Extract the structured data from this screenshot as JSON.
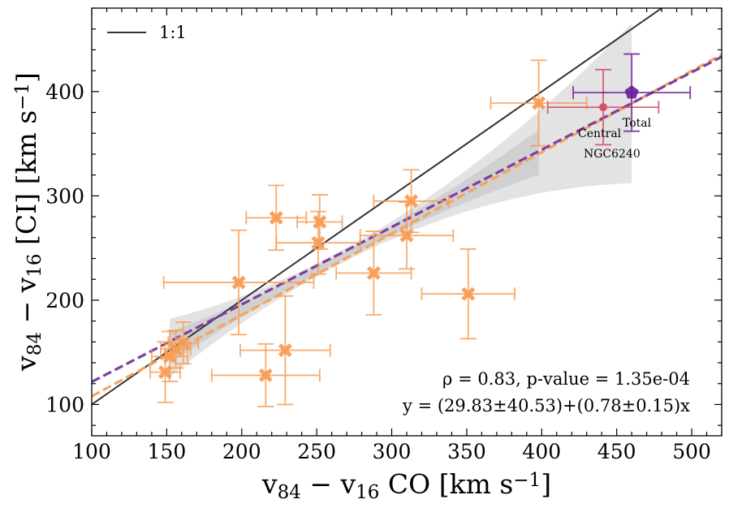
{
  "chart_data": {
    "type": "scatter",
    "xlabel": "v84 − v16 CO [km s−1]",
    "ylabel": "v84 − v16 [CI] [km s−1]",
    "xlabel_parts": {
      "main": "v",
      "sub1": "84",
      "minus": " − v",
      "sub2": "16",
      "species": " CO [km s",
      "sup": "−1",
      "end": "]"
    },
    "ylabel_parts": {
      "main": "v",
      "sub1": "84",
      "minus": " − v",
      "sub2": "16",
      "species": " [CI] [km s",
      "sup": "−1",
      "end": "]"
    },
    "xlim": [
      100,
      520
    ],
    "ylim": [
      70,
      480
    ],
    "xticks": [
      100,
      150,
      200,
      250,
      300,
      350,
      400,
      450,
      500
    ],
    "yticks": [
      100,
      200,
      300,
      400
    ],
    "xtick_labels": [
      "100",
      "150",
      "200",
      "250",
      "300",
      "350",
      "400",
      "450",
      "500"
    ],
    "ytick_labels": [
      "100",
      "200",
      "300",
      "400"
    ],
    "colors": {
      "points": "#f79d55",
      "total": "#6a1b9a",
      "central": "#d9506b",
      "one_to_one": "#333333",
      "fit_orange": "#f5a35f",
      "fit_purple": "#7b3fa0",
      "band_light": "#e3e3e3",
      "band_dark": "#c9c9c9"
    },
    "legend": [
      {
        "label": "1:1"
      }
    ],
    "points": [
      {
        "x": 149,
        "y": 131,
        "xerr": 10,
        "yerr": 29
      },
      {
        "x": 152,
        "y": 146,
        "xerr": 12,
        "yerr": 24
      },
      {
        "x": 156,
        "y": 153,
        "xerr": 10,
        "yerr": 18
      },
      {
        "x": 161,
        "y": 159,
        "xerr": 10,
        "yerr": 20
      },
      {
        "x": 198,
        "y": 217,
        "xerr": 50,
        "yerr": 50
      },
      {
        "x": 216,
        "y": 128,
        "xerr": 36,
        "yerr": 30
      },
      {
        "x": 223,
        "y": 279,
        "xerr": 20,
        "yerr": 31
      },
      {
        "x": 229,
        "y": 152,
        "xerr": 30,
        "yerr": 52
      },
      {
        "x": 251,
        "y": 255,
        "xerr": 28,
        "yerr": 30
      },
      {
        "x": 252,
        "y": 275,
        "xerr": 15,
        "yerr": 26
      },
      {
        "x": 288,
        "y": 226,
        "xerr": 25,
        "yerr": 40
      },
      {
        "x": 310,
        "y": 262,
        "xerr": 31,
        "yerr": 32
      },
      {
        "x": 313,
        "y": 295,
        "xerr": 25,
        "yerr": 30
      },
      {
        "x": 351,
        "y": 206,
        "xerr": 31,
        "yerr": 43
      },
      {
        "x": 398,
        "y": 389,
        "xerr": 32,
        "yerr": 41
      }
    ],
    "total": {
      "x": 460,
      "y": 399,
      "xerr": 39,
      "yerr": 37,
      "label": "Total"
    },
    "central": {
      "x": 441,
      "y": 385,
      "xerr": 37,
      "yerr": 36,
      "label": "Central"
    },
    "ngc_label": "NGC6240",
    "fits": [
      {
        "name": "orange",
        "intercept": 29.83,
        "slope": 0.78
      },
      {
        "name": "purple",
        "intercept": 47.5,
        "slope": 0.742
      }
    ],
    "band": {
      "x_start": 152,
      "x_split": 398,
      "x_end": 460
    },
    "annotations": {
      "rho": "ρ = 0.83, p-value = 1.35e-04",
      "equation": "y = (29.83±40.53)+(0.78±0.15)x"
    }
  }
}
